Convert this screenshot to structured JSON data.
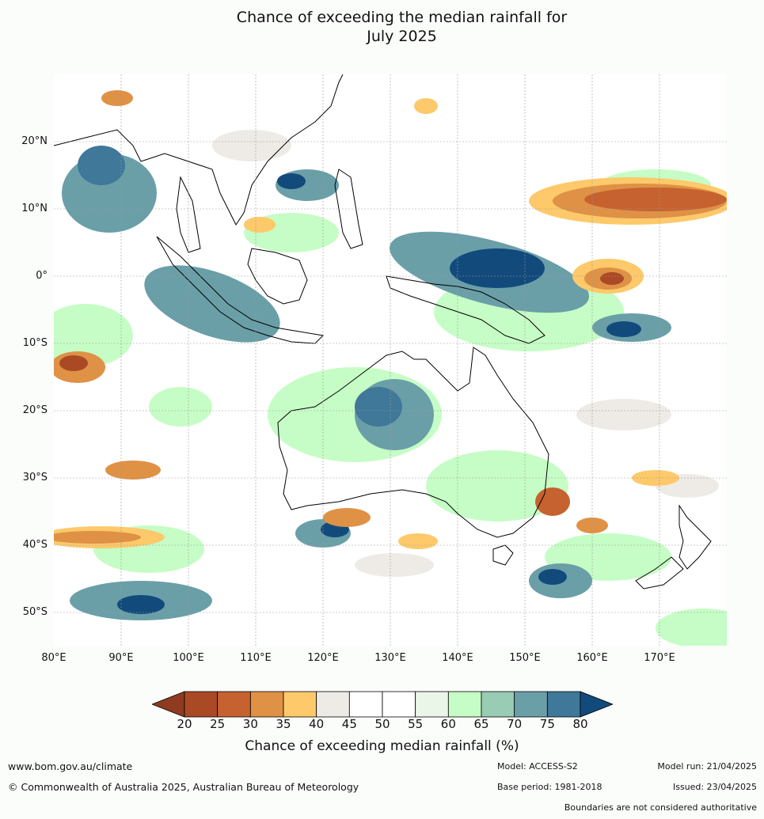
{
  "title_line1": "Chance of exceeding the median rainfall for",
  "title_line2": "July 2025",
  "lat_labels": [
    "20°N",
    "10°N",
    "0°",
    "10°S",
    "20°S",
    "30°S",
    "40°S",
    "50°S"
  ],
  "lon_labels": [
    "80°E",
    "90°E",
    "100°E",
    "110°E",
    "120°E",
    "130°E",
    "140°E",
    "150°E",
    "160°E",
    "170°E"
  ],
  "colorbar": {
    "label": "Chance of exceeding median rainfall (%)",
    "ticks": [
      "20",
      "25",
      "30",
      "35",
      "40",
      "45",
      "50",
      "55",
      "60",
      "65",
      "70",
      "75",
      "80"
    ],
    "colors": [
      "#8e3b20",
      "#aa4a25",
      "#c6622f",
      "#df9146",
      "#fdc96a",
      "#eeebe6",
      "#ffffff",
      "#ffffff",
      "#eaf6e8",
      "#c6fdc6",
      "#98ccb4",
      "#6a9fa8",
      "#3f7898",
      "#124a7c"
    ]
  },
  "footer": {
    "website": "www.bom.gov.au/climate",
    "copyright": "© Commonwealth of Australia 2025, Australian Bureau of Meteorology",
    "model": "Model: ACCESS-S2",
    "base_period": "Base period: 1981-2018",
    "model_run": "Model run: 21/04/2025",
    "issued": "Issued: 23/04/2025",
    "disclaimer": "Boundaries are not considered authoritative"
  }
}
